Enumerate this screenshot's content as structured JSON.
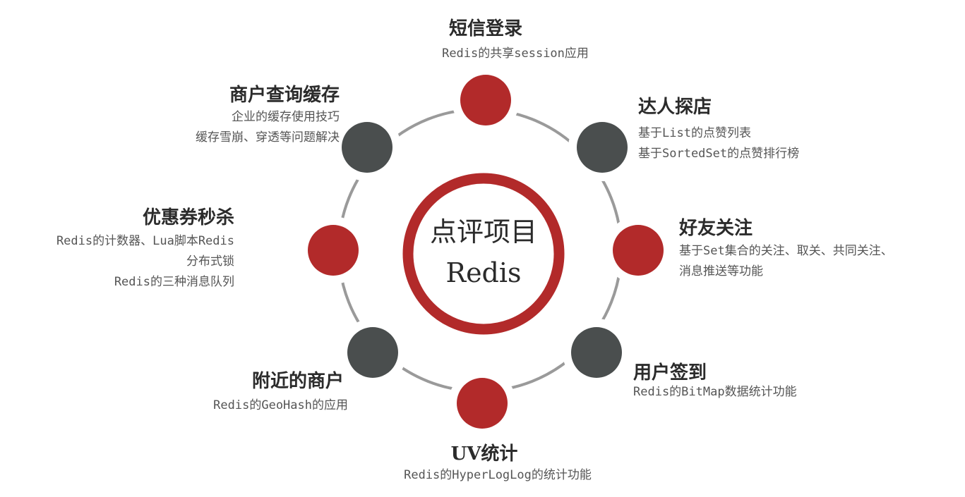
{
  "center": {
    "line1": "点评项目",
    "line2": "Redis"
  },
  "colors": {
    "red": "#b22a2a",
    "dark": "#4a4e4e",
    "ring": "#9a9a9a"
  },
  "features": {
    "sms_login": {
      "title": "短信登录",
      "lines": [
        "Redis的共享session应用"
      ]
    },
    "shop_cache": {
      "title": "商户查询缓存",
      "lines": [
        "企业的缓存使用技巧",
        "缓存雪崩、穿透等问题解决"
      ]
    },
    "expert_visit": {
      "title": "达人探店",
      "lines": [
        "基于List的点赞列表",
        "基于SortedSet的点赞排行榜"
      ]
    },
    "coupon_seckill": {
      "title": "优惠券秒杀",
      "lines": [
        "Redis的计数器、Lua脚本Redis",
        "分布式锁",
        "Redis的三种消息队列"
      ]
    },
    "follow": {
      "title": "好友关注",
      "lines": [
        "基于Set集合的关注、取关、共同关注、",
        "消息推送等功能"
      ]
    },
    "nearby_shops": {
      "title": "附近的商户",
      "lines": [
        "Redis的GeoHash的应用"
      ]
    },
    "user_sign": {
      "title": "用户签到",
      "lines": [
        "Redis的BitMap数据统计功能"
      ]
    },
    "uv_stats": {
      "title": "UV统计",
      "lines": [
        "Redis的HyperLogLog的统计功能"
      ]
    }
  }
}
